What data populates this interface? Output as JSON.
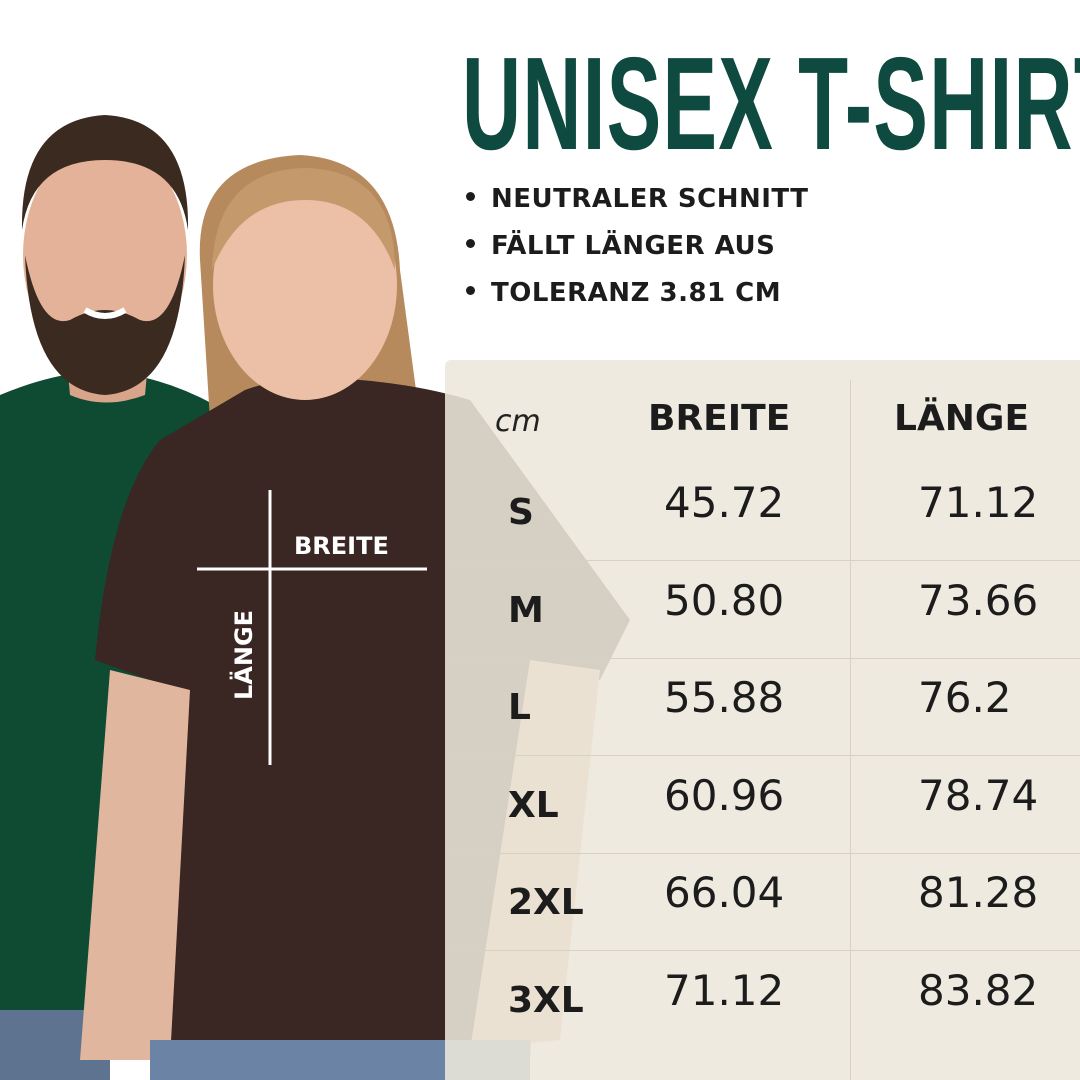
{
  "title": "UNISEX T-SHIRT",
  "bullets": [
    "NEUTRALER SCHNITT",
    "FÄLLT LÄNGER AUS",
    "TOLERANZ 3.81 CM"
  ],
  "colors": {
    "title": "#0e4a3f",
    "panel": "#ece7db",
    "green_shirt": "#0f4a33",
    "brown_shirt": "#3a2622"
  },
  "measure_labels": {
    "width": "BREITE",
    "length": "LÄNGE"
  },
  "table": {
    "unit": "cm",
    "headers": [
      "BREITE",
      "LÄNGE"
    ],
    "rows": [
      {
        "size": "S",
        "breite": "45.72",
        "laenge": "71.12"
      },
      {
        "size": "M",
        "breite": "50.80",
        "laenge": "73.66"
      },
      {
        "size": "L",
        "breite": "55.88",
        "laenge": "76.2"
      },
      {
        "size": "XL",
        "breite": "60.96",
        "laenge": "78.74"
      },
      {
        "size": "2XL",
        "breite": "66.04",
        "laenge": "81.28"
      },
      {
        "size": "3XL",
        "breite": "71.12",
        "laenge": "83.82"
      }
    ]
  }
}
